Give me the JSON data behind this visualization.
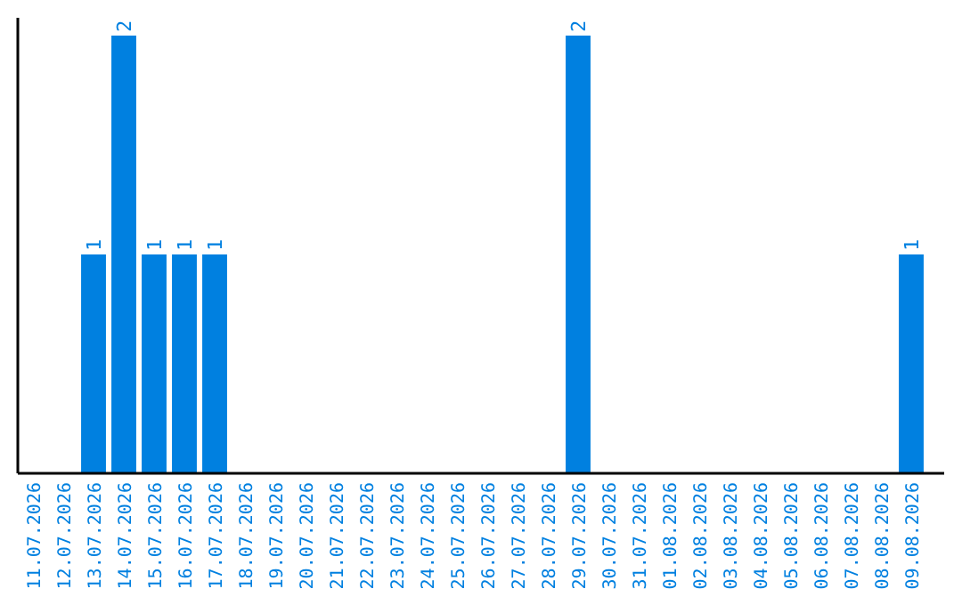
{
  "chart_data": {
    "type": "bar",
    "categories": [
      "11.07.2026",
      "12.07.2026",
      "13.07.2026",
      "14.07.2026",
      "15.07.2026",
      "16.07.2026",
      "17.07.2026",
      "18.07.2026",
      "19.07.2026",
      "20.07.2026",
      "21.07.2026",
      "22.07.2026",
      "23.07.2026",
      "24.07.2026",
      "25.07.2026",
      "26.07.2026",
      "27.07.2026",
      "28.07.2026",
      "29.07.2026",
      "30.07.2026",
      "31.07.2026",
      "01.08.2026",
      "02.08.2026",
      "03.08.2026",
      "04.08.2026",
      "05.08.2026",
      "06.08.2026",
      "07.08.2026",
      "08.08.2026",
      "09.08.2026"
    ],
    "values": [
      0,
      0,
      1,
      2,
      1,
      1,
      1,
      0,
      0,
      0,
      0,
      0,
      0,
      0,
      0,
      0,
      0,
      0,
      2,
      0,
      0,
      0,
      0,
      0,
      0,
      0,
      0,
      0,
      0,
      1
    ],
    "value_labels": [
      null,
      null,
      "1",
      "2",
      "1",
      "1",
      "1",
      null,
      null,
      null,
      null,
      null,
      null,
      null,
      null,
      null,
      null,
      null,
      "2",
      null,
      null,
      null,
      null,
      null,
      null,
      null,
      null,
      null,
      null,
      "1"
    ],
    "color": "#0080e0",
    "tick_labels": "x"
  }
}
